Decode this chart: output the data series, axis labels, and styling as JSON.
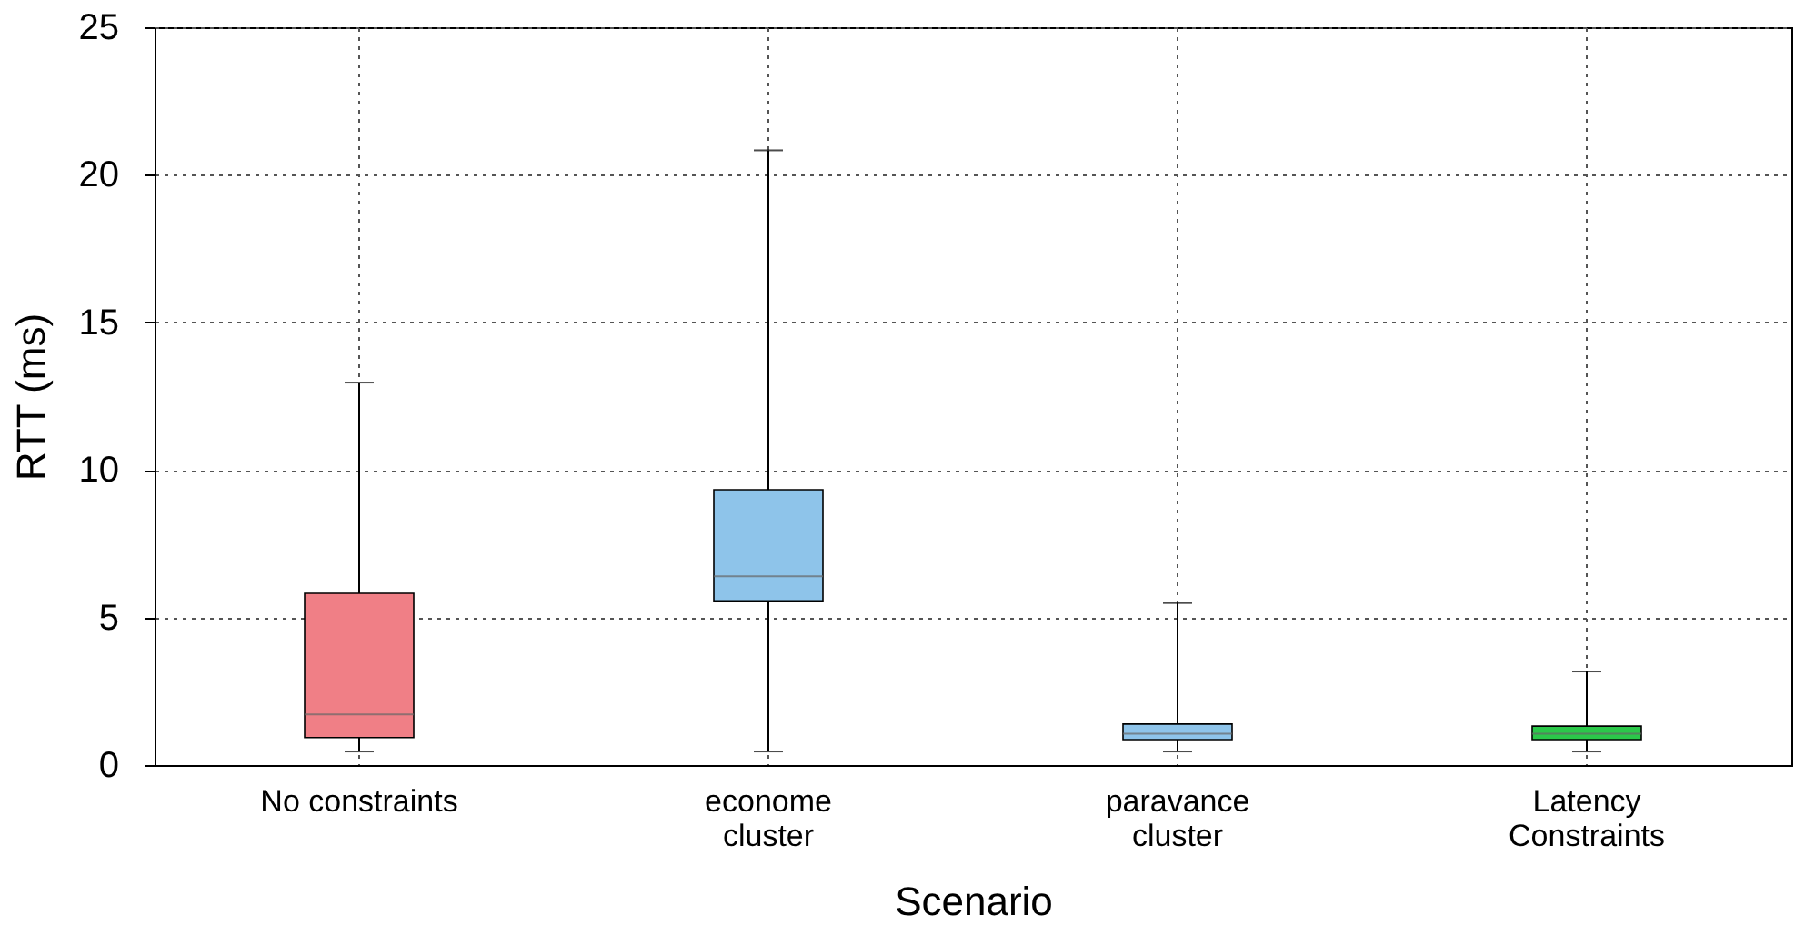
{
  "chart_data": {
    "type": "box",
    "xlabel": "Scenario",
    "ylabel": "RTT (ms)",
    "categories": [
      "No constraints",
      "econome\ncluster",
      "paravance\ncluster",
      "Latency\nConstraints"
    ],
    "boxes": [
      {
        "low": 0.46,
        "q1": 0.93,
        "median": 1.72,
        "q3": 5.82,
        "high": 12.96
      },
      {
        "low": 0.46,
        "q1": 5.56,
        "median": 6.4,
        "q3": 9.33,
        "high": 20.83
      },
      {
        "low": 0.46,
        "q1": 0.86,
        "median": 1.06,
        "q3": 1.39,
        "high": 5.49
      },
      {
        "low": 0.46,
        "q1": 0.86,
        "median": 1.06,
        "q3": 1.32,
        "high": 3.17
      }
    ],
    "colors": [
      "#f07f86",
      "#8ec4ea",
      "#8ec4ea",
      "#2bc84a"
    ],
    "ylim": [
      0,
      25
    ],
    "yticks": [
      0,
      5,
      10,
      15,
      20,
      25
    ],
    "grid": true
  }
}
